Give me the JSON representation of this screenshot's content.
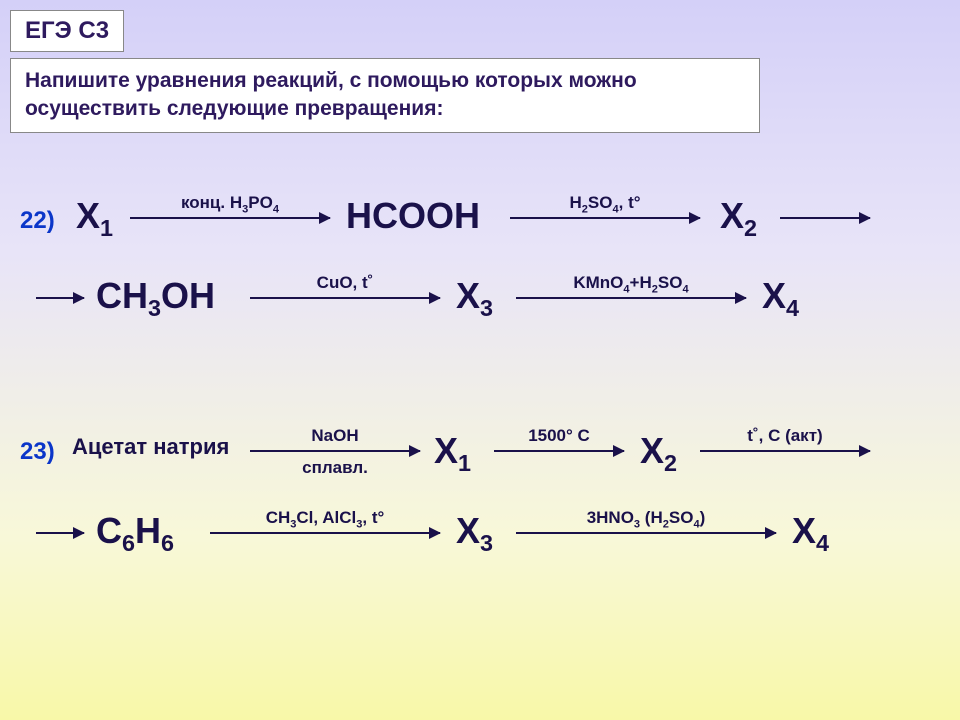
{
  "header": {
    "badge": "ЕГЭ С3",
    "prompt": "Напишите уравнения реакций, с помощью которых можно осуществить следующие превращения:"
  },
  "scheme22": {
    "num": "22)",
    "row1": {
      "s1": "X<sub>1</sub>",
      "a1": "конц. H<sub>3</sub>PO<sub>4</sub>",
      "s2": "HCOOH",
      "a2": "H<sub>2</sub>SO<sub>4</sub>, t°",
      "s3": "X<sub>2</sub>"
    },
    "row2": {
      "s1": "CH<sub>3</sub>OH",
      "a1": "CuO, t˚",
      "s2": "X<sub>3</sub>",
      "a2": "KMnO<sub>4</sub>+H<sub>2</sub>SO<sub>4</sub>",
      "s3": "X<sub>4</sub>"
    }
  },
  "scheme23": {
    "num": "23)",
    "row1": {
      "s1": "Ацетат натрия",
      "a1_top": "NaOH",
      "a1_bot": "сплавл.",
      "s2": "X<sub>1</sub>",
      "a2": "1500° С",
      "s3": "X<sub>2</sub>",
      "a3": "t˚, C (акт)"
    },
    "row2": {
      "s1": "C<sub>6</sub>H<sub>6</sub>",
      "a1": "CH<sub>3</sub>Cl, AlCl<sub>3</sub>, t°",
      "s2": "X<sub>3</sub>",
      "a2": "3HNO<sub>3</sub> (H<sub>2</sub>SO<sub>4</sub>)",
      "s3": "X<sub>4</sub>"
    }
  },
  "style": {
    "bg_gradient": [
      "#d4d0f8",
      "#e8e4f8",
      "#f8f8d8",
      "#f8f8a8"
    ],
    "text_color": "#1a114a",
    "num_color": "#0b36c9",
    "badge_bg": "#ffffff",
    "big_font": 36,
    "mid_font": 28,
    "lbl_font": 17
  }
}
